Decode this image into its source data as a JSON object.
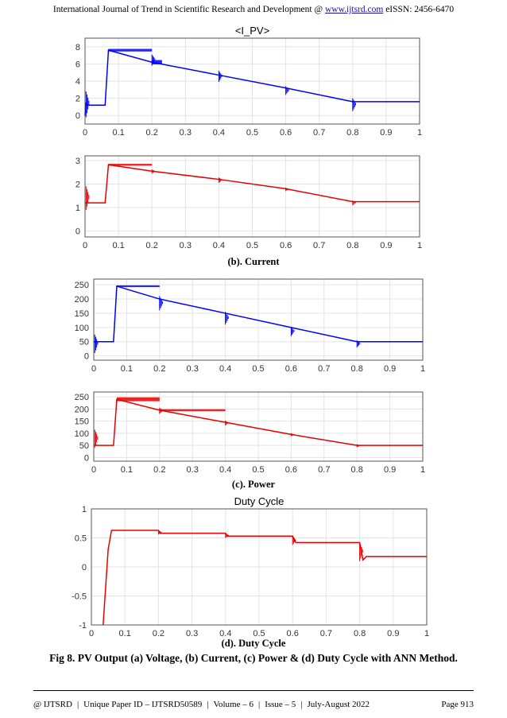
{
  "header": {
    "text": "International Journal of Trend in Scientific Research and Development @ ",
    "link": "www.ijtsrd.com",
    "issn": " eISSN: 2456-6470"
  },
  "captions": {
    "current": "(b). Current",
    "power": "(c). Power",
    "duty": "(d). Duty Cycle",
    "figure": "Fig 8. PV Output (a) Voltage, (b) Current, (c) Power & (d) Duty Cycle with ANN Method."
  },
  "footer": {
    "left": "@ IJTSRD",
    "paper_id": "Unique Paper ID – IJTSRD50589",
    "volume": "Volume – 6",
    "issue": "Issue – 5",
    "date": "July-August 2022",
    "page": "Page 913"
  },
  "chart_data": [
    {
      "type": "line",
      "title": "<I_PV>",
      "color": "#0000ff",
      "xlim": [
        0,
        1
      ],
      "ylim": [
        -1,
        9
      ],
      "xticks": [
        0,
        0.1,
        0.2,
        0.3,
        0.4,
        0.5,
        0.6,
        0.7,
        0.8,
        0.9,
        1
      ],
      "yticks": [
        0,
        2,
        4,
        6,
        8
      ],
      "series": [
        {
          "x": [
            0,
            0.003,
            0.006,
            0.06,
            0.07,
            0.2,
            0.4,
            0.6,
            0.8,
            1.0
          ],
          "values": [
            0,
            1.5,
            1.2,
            1.2,
            7.6,
            6.2,
            4.7,
            3.2,
            1.6,
            1.6
          ]
        }
      ],
      "spikes": [
        [
          0.003,
          -0.2,
          2.8
        ],
        [
          0.2,
          5.8,
          7.1
        ],
        [
          0.4,
          3.9,
          5.2
        ],
        [
          0.6,
          2.4,
          3.4
        ],
        [
          0.8,
          0.5,
          2.0
        ]
      ],
      "band": [
        [
          0.07,
          0.2,
          0.15
        ],
        [
          0.2,
          0.23,
          0.25
        ]
      ],
      "grid": true
    },
    {
      "type": "line",
      "color": "#e60000",
      "xlim": [
        0,
        1
      ],
      "ylim": [
        -0.25,
        3.2
      ],
      "xticks": [
        0,
        0.1,
        0.2,
        0.3,
        0.4,
        0.5,
        0.6,
        0.7,
        0.8,
        0.9,
        1
      ],
      "yticks": [
        0,
        1,
        2,
        3
      ],
      "series": [
        {
          "x": [
            0,
            0.006,
            0.06,
            0.07,
            0.2,
            0.4,
            0.6,
            0.8,
            1.0
          ],
          "values": [
            1.2,
            1.2,
            1.2,
            2.82,
            2.55,
            2.2,
            1.8,
            1.25,
            1.25
          ]
        }
      ],
      "spikes": [
        [
          0.003,
          0.9,
          1.9
        ],
        [
          0.2,
          2.45,
          2.62
        ],
        [
          0.4,
          2.05,
          2.28
        ],
        [
          0.6,
          1.7,
          1.85
        ],
        [
          0.8,
          1.1,
          1.3
        ]
      ],
      "band": [
        [
          0.07,
          0.2,
          0.04
        ]
      ],
      "grid": true
    },
    {
      "type": "line",
      "color": "#0000ff",
      "xlim": [
        0,
        1
      ],
      "ylim": [
        -15,
        270
      ],
      "xticks": [
        0,
        0.1,
        0.2,
        0.3,
        0.4,
        0.5,
        0.6,
        0.7,
        0.8,
        0.9,
        1
      ],
      "yticks": [
        0,
        50,
        100,
        150,
        200,
        250
      ],
      "series": [
        {
          "x": [
            0,
            0.006,
            0.06,
            0.07,
            0.2,
            0.4,
            0.6,
            0.8,
            1.0
          ],
          "values": [
            50,
            50,
            50,
            245,
            200,
            150,
            100,
            50,
            50
          ]
        }
      ],
      "spikes": [
        [
          0.003,
          10,
          75
        ],
        [
          0.2,
          160,
          210
        ],
        [
          0.4,
          110,
          155
        ],
        [
          0.6,
          70,
          102
        ],
        [
          0.8,
          30,
          55
        ]
      ],
      "band": [
        [
          0.07,
          0.2,
          3
        ]
      ],
      "grid": true
    },
    {
      "type": "line",
      "color": "#e60000",
      "xlim": [
        0,
        1
      ],
      "ylim": [
        -15,
        270
      ],
      "xticks": [
        0,
        0.1,
        0.2,
        0.3,
        0.4,
        0.5,
        0.6,
        0.7,
        0.8,
        0.9,
        1
      ],
      "yticks": [
        0,
        50,
        100,
        150,
        200,
        250
      ],
      "series": [
        {
          "x": [
            0,
            0.006,
            0.06,
            0.07,
            0.2,
            0.4,
            0.6,
            0.8,
            1.0
          ],
          "values": [
            50,
            50,
            50,
            240,
            195,
            145,
            95,
            50,
            50
          ]
        }
      ],
      "spikes": [
        [
          0.003,
          40,
          115
        ],
        [
          0.2,
          180,
          205
        ],
        [
          0.4,
          132,
          152
        ],
        [
          0.6,
          88,
          100
        ],
        [
          0.8,
          42,
          55
        ]
      ],
      "band": [
        [
          0.07,
          0.2,
          8
        ],
        [
          0.2,
          0.4,
          4
        ]
      ],
      "grid": true
    },
    {
      "type": "line",
      "title": "Duty Cycle",
      "color": "#e60000",
      "xlim": [
        0,
        1
      ],
      "ylim": [
        -1,
        1
      ],
      "xticks": [
        0,
        0.1,
        0.2,
        0.3,
        0.4,
        0.5,
        0.6,
        0.7,
        0.8,
        0.9,
        1
      ],
      "yticks": [
        -1,
        -0.5,
        0,
        0.5,
        1
      ],
      "series": [
        {
          "x": [
            0.035,
            0.05,
            0.06,
            0.2,
            0.205,
            0.4,
            0.405,
            0.6,
            0.61,
            0.8,
            0.81,
            0.82,
            1.0
          ],
          "values": [
            -1,
            0.3,
            0.63,
            0.63,
            0.58,
            0.58,
            0.53,
            0.53,
            0.42,
            0.42,
            0.12,
            0.18,
            0.18
          ]
        }
      ],
      "spikes": [
        [
          0.2,
          0.56,
          0.63
        ],
        [
          0.4,
          0.5,
          0.58
        ],
        [
          0.6,
          0.38,
          0.53
        ],
        [
          0.8,
          0.1,
          0.42
        ]
      ],
      "band": [],
      "grid": true
    }
  ]
}
